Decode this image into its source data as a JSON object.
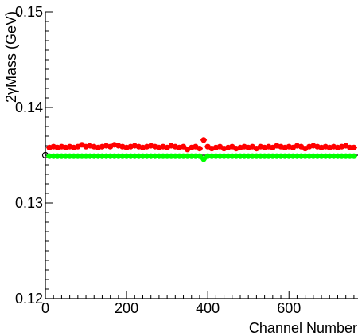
{
  "chart_data": {
    "type": "scatter",
    "xlabel": "Channel Number",
    "ylabel": "2γMass (GeV)",
    "xlim": [
      0,
      770
    ],
    "ylim": [
      0.12,
      0.15
    ],
    "x_ticks": [
      0,
      200,
      400,
      600
    ],
    "x_tick_labels": [
      "0",
      "200",
      "400",
      "600"
    ],
    "y_ticks": [
      0.12,
      0.13,
      0.14,
      0.15
    ],
    "y_tick_labels": [
      "0.12",
      "0.13",
      "0.14",
      "0.15"
    ],
    "grid": false,
    "series": [
      {
        "color": "#ff0000",
        "x": [
          10,
          20,
          30,
          40,
          50,
          60,
          70,
          80,
          90,
          100,
          110,
          120,
          130,
          140,
          150,
          160,
          170,
          180,
          190,
          200,
          210,
          220,
          230,
          240,
          250,
          260,
          270,
          280,
          290,
          300,
          310,
          320,
          330,
          340,
          350,
          360,
          370,
          380,
          390,
          400,
          410,
          420,
          430,
          440,
          450,
          460,
          470,
          480,
          490,
          500,
          510,
          520,
          530,
          540,
          550,
          560,
          570,
          580,
          590,
          600,
          610,
          620,
          630,
          640,
          650,
          660,
          670,
          680,
          690,
          700,
          710,
          720,
          730,
          740,
          750,
          760
        ],
        "y": [
          0.1358,
          0.1359,
          0.1358,
          0.1359,
          0.1358,
          0.1359,
          0.1358,
          0.1359,
          0.1361,
          0.1359,
          0.136,
          0.1359,
          0.1358,
          0.1359,
          0.136,
          0.1359,
          0.1361,
          0.136,
          0.1359,
          0.1358,
          0.1359,
          0.136,
          0.1359,
          0.1358,
          0.1359,
          0.136,
          0.1359,
          0.1358,
          0.1359,
          0.1358,
          0.136,
          0.1359,
          0.1358,
          0.1359,
          0.1356,
          0.1358,
          0.1359,
          0.1357,
          0.1366,
          0.1359,
          0.1357,
          0.1358,
          0.1359,
          0.1357,
          0.1358,
          0.1359,
          0.1357,
          0.1358,
          0.1359,
          0.1358,
          0.1359,
          0.1357,
          0.1359,
          0.1358,
          0.1359,
          0.1358,
          0.136,
          0.1359,
          0.1358,
          0.1359,
          0.1358,
          0.136,
          0.1359,
          0.1357,
          0.1359,
          0.136,
          0.1359,
          0.1358,
          0.1359,
          0.1358,
          0.1359,
          0.1358,
          0.1359,
          0.136,
          0.1358,
          0.1358
        ]
      },
      {
        "color": "#00ff00",
        "x": [
          10,
          20,
          30,
          40,
          50,
          60,
          70,
          80,
          90,
          100,
          110,
          120,
          130,
          140,
          150,
          160,
          170,
          180,
          190,
          200,
          210,
          220,
          230,
          240,
          250,
          260,
          270,
          280,
          290,
          300,
          310,
          320,
          330,
          340,
          350,
          360,
          370,
          380,
          390,
          400,
          410,
          420,
          430,
          440,
          450,
          460,
          470,
          480,
          490,
          500,
          510,
          520,
          530,
          540,
          550,
          560,
          570,
          580,
          590,
          600,
          610,
          620,
          630,
          640,
          650,
          660,
          670,
          680,
          690,
          700,
          710,
          720,
          730,
          740,
          750,
          760
        ],
        "y": [
          0.1349,
          0.1349,
          0.1349,
          0.1349,
          0.1349,
          0.1349,
          0.1349,
          0.1349,
          0.1349,
          0.1349,
          0.1349,
          0.1349,
          0.1349,
          0.1349,
          0.1349,
          0.1349,
          0.1349,
          0.1349,
          0.1349,
          0.1349,
          0.1349,
          0.1349,
          0.1349,
          0.1349,
          0.1349,
          0.1349,
          0.1349,
          0.1349,
          0.1349,
          0.1349,
          0.1349,
          0.1349,
          0.1349,
          0.1349,
          0.1349,
          0.1349,
          0.1349,
          0.1349,
          0.1346,
          0.1349,
          0.1349,
          0.1349,
          0.1349,
          0.1349,
          0.1349,
          0.1349,
          0.1349,
          0.1349,
          0.1349,
          0.1349,
          0.1349,
          0.1349,
          0.1349,
          0.1349,
          0.1349,
          0.1349,
          0.1349,
          0.1349,
          0.1349,
          0.1349,
          0.1349,
          0.1349,
          0.1349,
          0.1349,
          0.1349,
          0.1349,
          0.1349,
          0.1349,
          0.1349,
          0.1349,
          0.1349,
          0.1349,
          0.1349,
          0.1349,
          0.1349,
          0.1349
        ]
      }
    ],
    "reference_line": {
      "y": 0.135,
      "color": "#000000"
    }
  }
}
